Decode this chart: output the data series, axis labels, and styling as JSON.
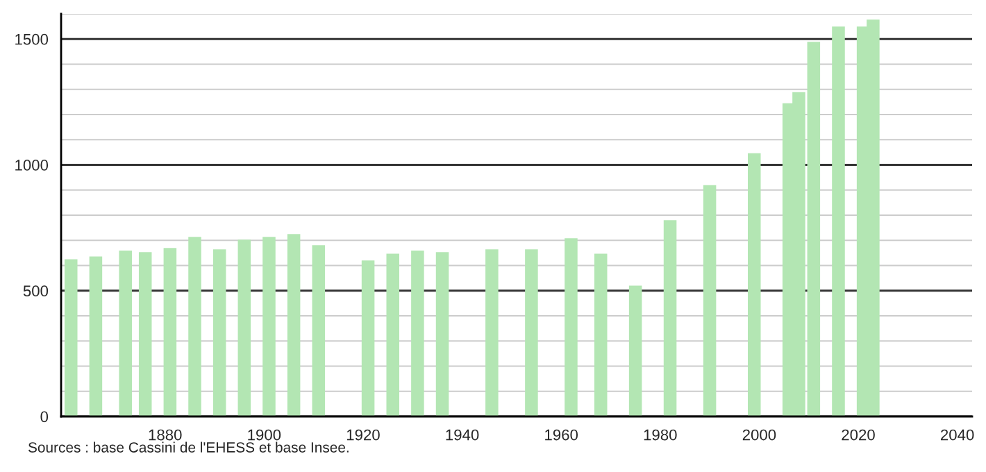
{
  "chart_data": {
    "type": "bar",
    "x": [
      1861,
      1866,
      1872,
      1876,
      1881,
      1886,
      1891,
      1896,
      1901,
      1906,
      1911,
      1921,
      1926,
      1931,
      1936,
      1946,
      1954,
      1962,
      1968,
      1975,
      1982,
      1990,
      1999,
      2006,
      2008,
      2011,
      2016,
      2021,
      2023
    ],
    "values": [
      625,
      636,
      659,
      653,
      670,
      714,
      664,
      703,
      714,
      725,
      681,
      620,
      647,
      659,
      653,
      664,
      664,
      708,
      647,
      520,
      780,
      919,
      1046,
      1245,
      1289,
      1489,
      1550,
      1550,
      1577
    ],
    "color": "#b3e6b3",
    "xlim": [
      1859,
      2043
    ],
    "xticks": [
      1880,
      1900,
      1920,
      1940,
      1960,
      1980,
      2000,
      2020,
      2040
    ],
    "ylim": [
      0,
      1600
    ],
    "yticks": [
      0,
      {
        "value": 100,
        "label": null
      },
      {
        "value": 200,
        "label": null
      },
      {
        "value": 300,
        "label": null
      },
      {
        "value": 400,
        "label": null
      },
      500,
      {
        "value": 600,
        "label": null
      },
      {
        "value": 700,
        "label": null
      },
      {
        "value": 800,
        "label": null
      },
      {
        "value": 900,
        "label": null
      },
      1000,
      {
        "value": 1100,
        "label": null
      },
      {
        "value": 1200,
        "label": null
      },
      {
        "value": 1300,
        "label": null
      },
      {
        "value": 1400,
        "label": null
      },
      1500,
      {
        "value": 1600,
        "label": null
      }
    ],
    "grid": "y",
    "annotations": [
      "Sources : base Cassini de l'EHESS et base Insee."
    ]
  }
}
